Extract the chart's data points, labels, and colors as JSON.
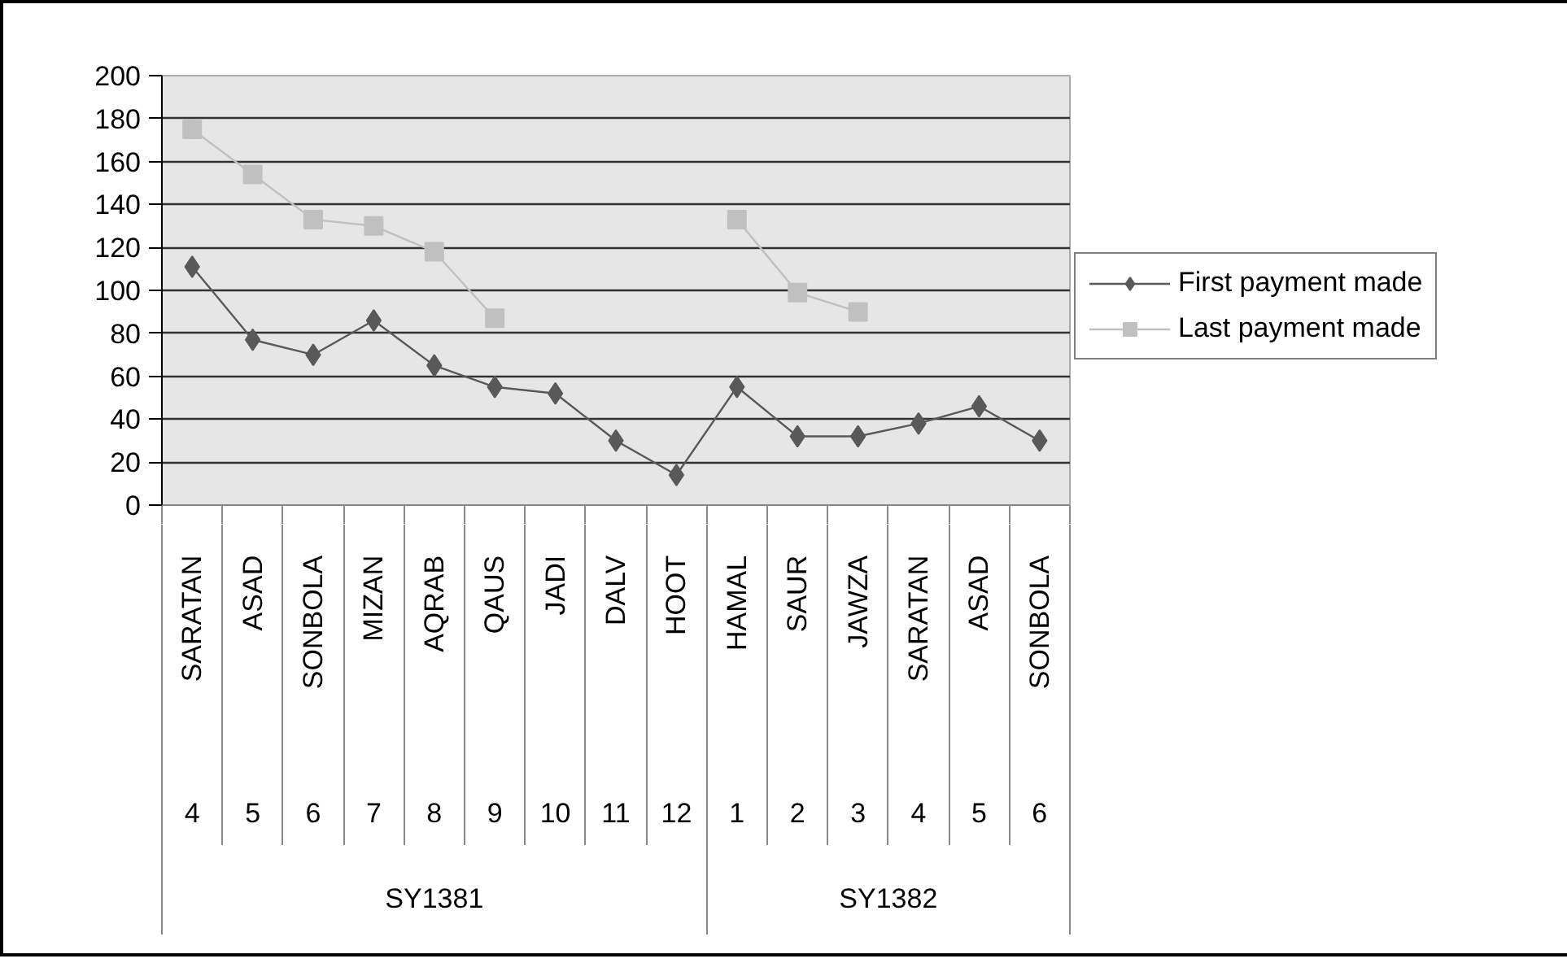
{
  "chart_data": {
    "type": "line",
    "categories": [
      "SARATAN",
      "ASAD",
      "SONBOLA",
      "MIZAN",
      "AQRAB",
      "QAUS",
      "JADI",
      "DALV",
      "HOOT",
      "HAMAL",
      "SAUR",
      "JAWZA",
      "SARATAN",
      "ASAD",
      "SONBOLA"
    ],
    "series": [
      {
        "name": "First payment made",
        "color": "#595959",
        "marker": "diamond",
        "values": [
          111,
          77,
          70,
          86,
          65,
          55,
          52,
          30,
          14,
          55,
          32,
          32,
          38,
          46,
          30
        ]
      },
      {
        "name": "Last payment made",
        "color": "#c0c0c0",
        "marker": "square",
        "values": [
          175,
          154,
          133,
          130,
          118,
          87,
          null,
          null,
          null,
          133,
          99,
          90,
          null,
          null,
          null
        ]
      }
    ],
    "annotations": [
      "4",
      "5",
      "6",
      "7",
      "8",
      "9",
      "10",
      "11",
      "12",
      "1",
      "2",
      "3",
      "4",
      "5",
      "6",
      "SY1381",
      "SY1382"
    ],
    "ylim": [
      0,
      200
    ],
    "yticks": [
      0,
      20,
      40,
      60,
      80,
      100,
      120,
      140,
      160,
      180,
      200
    ],
    "grid": "y",
    "legend": "right"
  }
}
